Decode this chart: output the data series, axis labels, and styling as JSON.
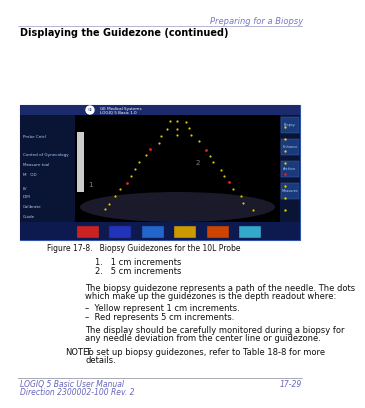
{
  "title_right": "Preparing for a Biopsy",
  "section_title": "Displaying the Guidezone (continued)",
  "figure_caption": "Figure 17-8.   Biopsy Guidezones for the 10L Probe",
  "list_item_1": "1.   1 cm increments",
  "list_item_2": "2.   5 cm increments",
  "body_text_1a": "The biopsy guidezone represents a path of the needle. The dots",
  "body_text_1b": "which make up the guidezones is the depth readout where:",
  "bullet_1": "Yellow represent 1 cm increments.",
  "bullet_2": "Red represents 5 cm increments.",
  "body_text_2a": "The display should be carefully monitored during a biopsy for",
  "body_text_2b": "any needle deviation from the center line or guidezone.",
  "note_label": "NOTE:",
  "note_text_a": "To set up biopsy guidezones, refer to Table 18-8 for more",
  "note_text_b": "details.",
  "footer_left_1": "LOGIQ 5 Basic User Manual",
  "footer_left_2": "Direction 2300002-100 Rev. 2",
  "footer_right": "17-29",
  "header_color": "#7777cc",
  "section_title_color": "#000000",
  "body_color": "#111111",
  "footer_color": "#6666bb",
  "bg_color": "#ffffff",
  "rule_color": "#aaaacc",
  "screen_border": "#3355aa",
  "screen_bg": "#000820",
  "left_panel_bg": "#0a1535",
  "right_panel_bg": "#0a1535",
  "scan_bg": "#000000",
  "header_bar_color": "#1a2a6a",
  "bottom_bar_color": "#0d1a50"
}
